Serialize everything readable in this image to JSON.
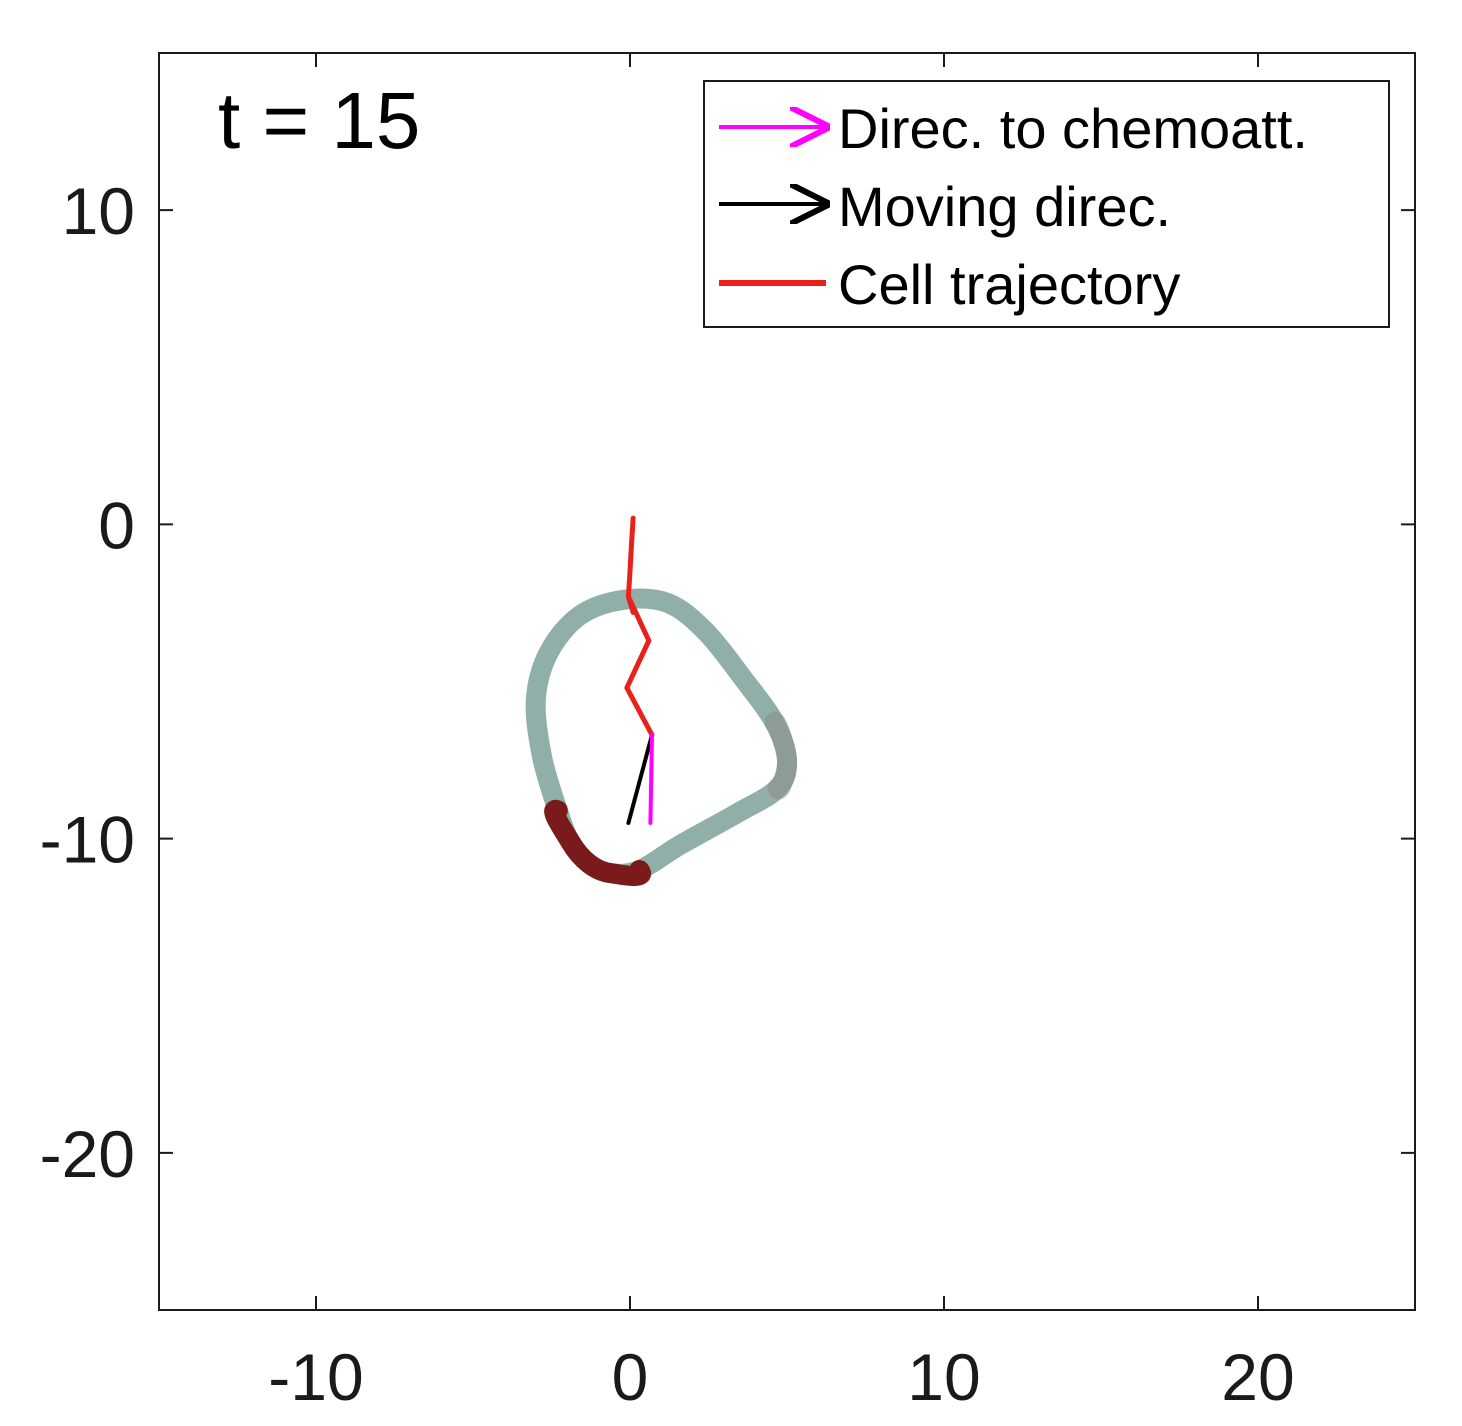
{
  "chart_data": {
    "type": "line",
    "annotation": "t = 15",
    "xlim": [
      -15,
      25
    ],
    "ylim": [
      -25,
      15
    ],
    "xticks": [
      -10,
      0,
      10,
      20
    ],
    "yticks": [
      10,
      0,
      -10,
      -20
    ],
    "xtick_labels": [
      "-10",
      "0",
      "10",
      "20"
    ],
    "ytick_labels": [
      "10",
      "0",
      "-10",
      "-20"
    ],
    "grid": false,
    "legend_position": "top-right",
    "legend": [
      {
        "label": "Direc. to chemoatt.",
        "color": "#ff00ff",
        "style": "arrow"
      },
      {
        "label": "Moving direc.",
        "color": "#000000",
        "style": "arrow"
      },
      {
        "label": "Cell trajectory",
        "color": "#e8221a",
        "style": "line"
      }
    ],
    "series": [
      {
        "name": "Cell trajectory",
        "color": "#e8221a",
        "points": [
          [
            0.1,
            0.2
          ],
          [
            0.05,
            -0.6
          ],
          [
            0.0,
            -1.5
          ],
          [
            -0.05,
            -2.3
          ],
          [
            0.1,
            -2.8
          ],
          [
            -0.05,
            -2.3
          ],
          [
            0.6,
            -3.7
          ],
          [
            -0.1,
            -5.2
          ],
          [
            0.7,
            -6.7
          ]
        ]
      },
      {
        "name": "Cell boundary",
        "color_base": "#8fafa8",
        "color_front": "#7a1a1a",
        "color_side": "#8c8c8c",
        "points": [
          [
            -0.2,
            -2.4
          ],
          [
            1.2,
            -2.5
          ],
          [
            2.4,
            -3.4
          ],
          [
            3.6,
            -4.9
          ],
          [
            4.6,
            -6.3
          ],
          [
            5.0,
            -7.5
          ],
          [
            4.7,
            -8.4
          ],
          [
            3.4,
            -9.2
          ],
          [
            1.6,
            -10.2
          ],
          [
            0.3,
            -11.0
          ],
          [
            -0.6,
            -11.1
          ],
          [
            -1.3,
            -10.8
          ],
          [
            -1.9,
            -10.1
          ],
          [
            -2.3,
            -9.1
          ],
          [
            -2.8,
            -7.4
          ],
          [
            -3.0,
            -5.6
          ],
          [
            -2.6,
            -4.1
          ],
          [
            -1.6,
            -2.9
          ],
          [
            -0.2,
            -2.4
          ]
        ],
        "front_segment": [
          9,
          13
        ]
      },
      {
        "name": "Moving direc.",
        "color": "#000000",
        "from": [
          0.7,
          -6.7
        ],
        "to": [
          -0.05,
          -9.5
        ]
      },
      {
        "name": "Direc. to chemoatt.",
        "color": "#ff00ff",
        "from": [
          0.7,
          -6.7
        ],
        "to": [
          0.65,
          -9.5
        ]
      }
    ]
  }
}
